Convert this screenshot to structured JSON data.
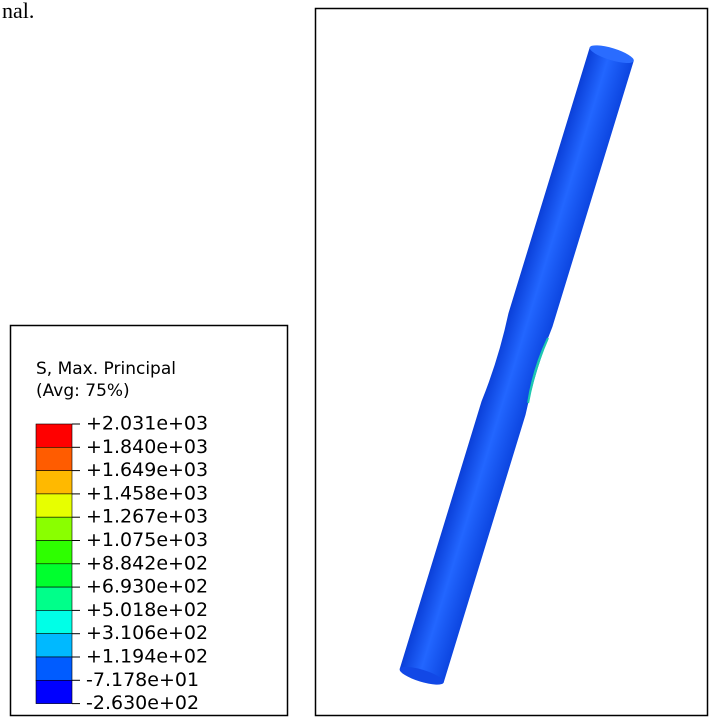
{
  "fragment": "nal.",
  "legend": {
    "title": "S, Max. Principal",
    "subtitle": "(Avg: 75%)",
    "labels": [
      "+2.031e+03",
      "+1.840e+03",
      "+1.649e+03",
      "+1.458e+03",
      "+1.267e+03",
      "+1.075e+03",
      "+8.842e+02",
      "+6.930e+02",
      "+5.018e+02",
      "+3.106e+02",
      "+1.194e+02",
      "-7.178e+01",
      "-2.630e+02"
    ],
    "colors": [
      "#ff0000",
      "#ff5c00",
      "#ffb900",
      "#e7ff00",
      "#8aff00",
      "#2eff00",
      "#00ff2e",
      "#00ff8a",
      "#00ffe7",
      "#00b9ff",
      "#005cff",
      "#0000ff"
    ]
  }
}
